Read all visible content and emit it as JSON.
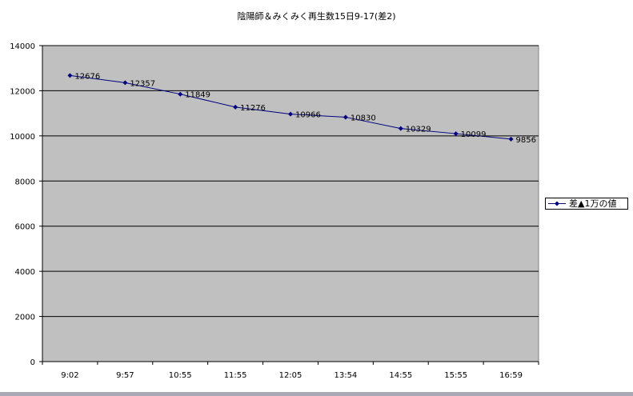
{
  "chart_data": {
    "type": "line",
    "title": "陰陽師＆みくみく再生数15日9-17(差2)",
    "xlabel": "",
    "ylabel": "",
    "categories": [
      "9:02",
      "9:57",
      "10:55",
      "11:55",
      "12:05",
      "13:54",
      "14:55",
      "15:55",
      "16:59"
    ],
    "series": [
      {
        "name": "差▲1万の値",
        "values": [
          12676,
          12357,
          11849,
          11276,
          10966,
          10830,
          10329,
          10099,
          9856
        ],
        "color": "#000080"
      }
    ],
    "ylim": [
      0,
      14000
    ],
    "yticks": [
      0,
      2000,
      4000,
      6000,
      8000,
      10000,
      12000,
      14000
    ],
    "grid": true,
    "legend_position": "right",
    "plot_background": "#c0c0c0",
    "data_labels": true
  }
}
